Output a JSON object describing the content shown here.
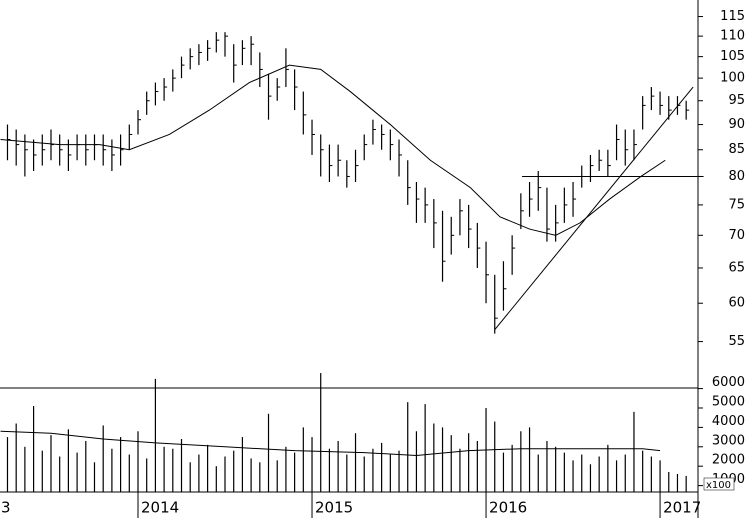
{
  "chart_data": {
    "type": "ohlc",
    "log_scale": true,
    "color": "#000000",
    "xlim": [
      2013.207,
      2017.218
    ],
    "xticks": [
      {
        "value": 2013,
        "label": "3"
      },
      2014,
      2015,
      2016,
      2017
    ],
    "ylim": [
      49.5,
      119.4
    ],
    "yticks": [
      55,
      60,
      65,
      70,
      75,
      80,
      85,
      90,
      95,
      100,
      105,
      110,
      115
    ],
    "x": [
      2013.25,
      2013.3,
      2013.35,
      2013.4,
      2013.45,
      2013.5,
      2013.55,
      2013.6,
      2013.65,
      2013.7,
      2013.75,
      2013.8,
      2013.85,
      2013.9,
      2013.95,
      2014.0,
      2014.05,
      2014.1,
      2014.15,
      2014.2,
      2014.25,
      2014.3,
      2014.35,
      2014.4,
      2014.45,
      2014.5,
      2014.55,
      2014.6,
      2014.65,
      2014.7,
      2014.75,
      2014.8,
      2014.85,
      2014.9,
      2014.95,
      2015.0,
      2015.05,
      2015.1,
      2015.15,
      2015.2,
      2015.25,
      2015.3,
      2015.35,
      2015.4,
      2015.45,
      2015.5,
      2015.55,
      2015.6,
      2015.65,
      2015.7,
      2015.75,
      2015.8,
      2015.85,
      2015.9,
      2015.95,
      2016.0,
      2016.05,
      2016.1,
      2016.15,
      2016.2,
      2016.25,
      2016.3,
      2016.35,
      2016.4,
      2016.45,
      2016.5,
      2016.55,
      2016.6,
      2016.65,
      2016.7,
      2016.75,
      2016.8,
      2016.85,
      2016.9,
      2016.95,
      2017.0,
      2017.05,
      2017.1,
      2017.15
    ],
    "high": [
      90,
      89,
      88,
      87,
      88,
      89,
      88,
      87,
      88,
      88,
      88,
      88,
      87,
      88,
      90,
      93,
      97,
      99,
      100,
      102,
      105,
      107,
      108,
      109,
      111,
      111,
      108,
      109,
      110,
      106,
      101,
      100,
      107,
      102,
      97,
      91,
      88,
      86,
      86,
      83,
      85,
      88,
      91,
      90,
      89,
      87,
      83,
      79,
      78,
      76,
      74,
      73,
      76,
      75,
      72,
      69,
      64,
      66,
      70,
      77,
      79,
      81,
      78,
      75,
      78,
      79,
      82,
      84,
      85,
      85,
      90,
      89,
      89,
      96,
      98,
      97,
      96,
      96,
      95
    ],
    "low": [
      83,
      82,
      80,
      81,
      82,
      83,
      82,
      81,
      83,
      82,
      83,
      82,
      81,
      82,
      85,
      88,
      92,
      94,
      95,
      97,
      100,
      102,
      103,
      104,
      106,
      105,
      99,
      103,
      103,
      98,
      91,
      95,
      98,
      93,
      88,
      84,
      80,
      79,
      80,
      78,
      79,
      83,
      86,
      85,
      83,
      80,
      75,
      72,
      72,
      68,
      63,
      67,
      70,
      68,
      65,
      60,
      56,
      59,
      64,
      71,
      73,
      74,
      69,
      69,
      72,
      73,
      78,
      79,
      81,
      80,
      83,
      82,
      83,
      89,
      93,
      92,
      91,
      92,
      91
    ],
    "close": [
      87,
      86,
      85,
      84,
      85,
      86,
      85,
      84,
      86,
      85,
      86,
      85,
      84,
      85,
      88,
      91,
      95,
      97,
      98,
      100,
      103,
      105,
      106,
      107,
      109,
      110,
      103,
      107,
      108,
      102,
      96,
      98,
      102,
      98,
      92,
      88,
      85,
      82,
      83,
      80,
      82,
      86,
      89,
      88,
      86,
      84,
      78,
      76,
      75,
      72,
      66,
      70,
      74,
      71,
      68,
      64,
      58,
      62,
      68,
      74,
      76,
      78,
      71,
      72,
      75,
      76,
      80,
      82,
      83,
      82,
      87,
      85,
      86,
      94,
      96,
      94,
      93,
      94,
      93
    ],
    "moving_average": {
      "x": [
        2013.21,
        2013.55,
        2013.78,
        2013.95,
        2014.18,
        2014.41,
        2014.64,
        2014.87,
        2015.05,
        2015.22,
        2015.45,
        2015.68,
        2015.91,
        2016.08,
        2016.25,
        2016.4,
        2016.54,
        2016.71,
        2016.89,
        2017.03
      ],
      "values": [
        87,
        86,
        86,
        85,
        88,
        93,
        99,
        103,
        102,
        97,
        90,
        83,
        78,
        73,
        71,
        70,
        72,
        76,
        80,
        83
      ]
    },
    "lines": [
      {
        "x": [
          2016.207,
          2017.25
        ],
        "y": [
          80,
          80
        ]
      },
      {
        "x": [
          2016.05,
          2017.19
        ],
        "y": [
          56.5,
          98
        ]
      }
    ],
    "volume": {
      "ylim": [
        670,
        6030
      ],
      "yticks": [
        1000,
        2000,
        3000,
        4000,
        5000,
        6000
      ],
      "unit_label": "x100",
      "values": [
        3500,
        4200,
        3000,
        5100,
        2800,
        3600,
        2500,
        3900,
        2700,
        3300,
        2200,
        4100,
        2900,
        3500,
        2600,
        3800,
        2400,
        6500,
        3000,
        2900,
        3400,
        2200,
        2600,
        3100,
        2000,
        2500,
        2800,
        3500,
        2400,
        2200,
        4700,
        2300,
        3000,
        2700,
        4000,
        3500,
        6800,
        2900,
        3300,
        2600,
        3700,
        2500,
        2900,
        3200,
        2600,
        2800,
        5300,
        3800,
        5200,
        4200,
        4000,
        3600,
        2900,
        3700,
        3300,
        5000,
        4300,
        2700,
        3100,
        3800,
        4000,
        2600,
        3300,
        3000,
        2700,
        2300,
        2600,
        2100,
        2500,
        3100,
        2300,
        2600,
        4800,
        2800,
        2500,
        2300,
        1700,
        1600,
        1500
      ],
      "moving_average": {
        "x": [
          2013.21,
          2013.5,
          2013.8,
          2014.1,
          2014.5,
          2014.9,
          2015.3,
          2015.6,
          2015.9,
          2016.2,
          2016.6,
          2016.9,
          2017.0
        ],
        "values": [
          3800,
          3700,
          3400,
          3200,
          3000,
          2800,
          2700,
          2550,
          2800,
          2900,
          2900,
          2900,
          2800
        ]
      }
    }
  }
}
